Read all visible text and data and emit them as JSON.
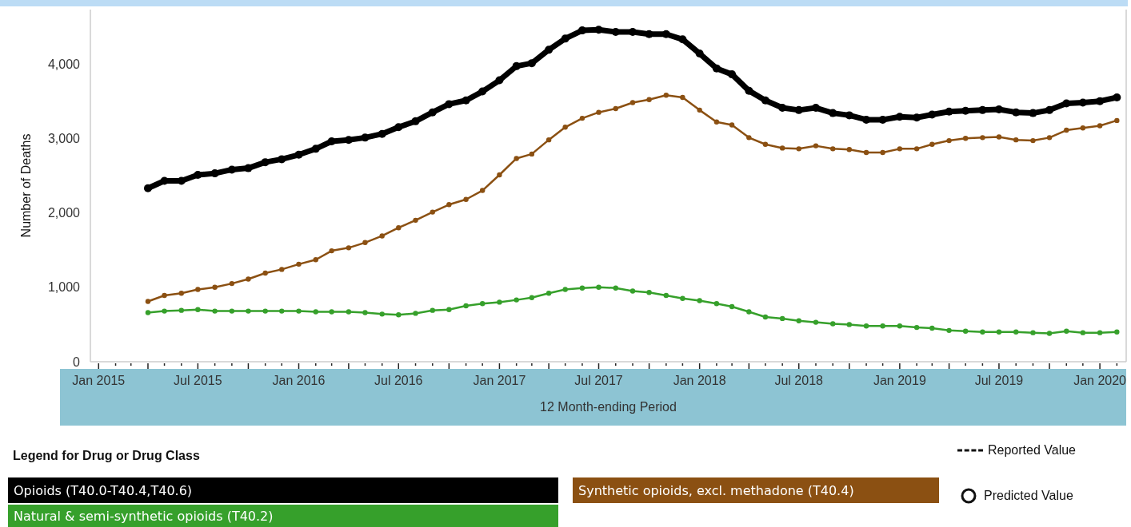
{
  "chart_data": {
    "type": "line",
    "ylabel": "Number of Deaths",
    "xlabel": "12 Month-ending Period",
    "legend_title": "Legend for Drug or Drug Class",
    "legend": "bottom",
    "marker": "circle",
    "line_style": "solid",
    "annotations": [
      "Reported Value",
      "Predicted Value"
    ],
    "x": [
      "2015-04",
      "2015-05",
      "2015-06",
      "2015-07",
      "2015-08",
      "2015-09",
      "2015-10",
      "2015-11",
      "2015-12",
      "2016-01",
      "2016-02",
      "2016-03",
      "2016-04",
      "2016-05",
      "2016-06",
      "2016-07",
      "2016-08",
      "2016-09",
      "2016-10",
      "2016-11",
      "2016-12",
      "2017-01",
      "2017-02",
      "2017-03",
      "2017-04",
      "2017-05",
      "2017-06",
      "2017-07",
      "2017-08",
      "2017-09",
      "2017-10",
      "2017-11",
      "2017-12",
      "2018-01",
      "2018-02",
      "2018-03",
      "2018-04",
      "2018-05",
      "2018-06",
      "2018-07",
      "2018-08",
      "2018-09",
      "2018-10",
      "2018-11",
      "2018-12",
      "2019-01",
      "2019-02",
      "2019-03",
      "2019-04",
      "2019-05",
      "2019-06",
      "2019-07",
      "2019-08",
      "2019-09",
      "2019-10",
      "2019-11",
      "2019-12",
      "2020-01",
      "2020-02"
    ],
    "series": [
      {
        "name": "Opioids (T40.0-T40.4,T40.6)",
        "color": "#000000",
        "values": [
          2330,
          2430,
          2430,
          2510,
          2530,
          2580,
          2600,
          2680,
          2720,
          2780,
          2860,
          2960,
          2980,
          3010,
          3060,
          3150,
          3230,
          3350,
          3460,
          3510,
          3630,
          3780,
          3970,
          4010,
          4190,
          4340,
          4450,
          4460,
          4430,
          4430,
          4400,
          4400,
          4330,
          4140,
          3940,
          3860,
          3640,
          3510,
          3410,
          3380,
          3410,
          3340,
          3310,
          3250,
          3250,
          3290,
          3280,
          3320,
          3360,
          3370,
          3380,
          3390,
          3350,
          3340,
          3380,
          3470,
          3480,
          3500,
          3550
        ]
      },
      {
        "name": "Synthetic opioids, excl. methadone (T40.4)",
        "color": "#8b5012",
        "values": [
          810,
          890,
          920,
          970,
          1000,
          1050,
          1110,
          1190,
          1240,
          1310,
          1370,
          1490,
          1530,
          1600,
          1690,
          1800,
          1900,
          2010,
          2110,
          2180,
          2300,
          2510,
          2730,
          2790,
          2980,
          3150,
          3270,
          3350,
          3400,
          3480,
          3520,
          3580,
          3550,
          3380,
          3220,
          3180,
          3010,
          2920,
          2870,
          2860,
          2900,
          2860,
          2850,
          2810,
          2810,
          2860,
          2860,
          2920,
          2970,
          3000,
          3010,
          3020,
          2980,
          2970,
          3010,
          3110,
          3140,
          3170,
          3240
        ]
      },
      {
        "name": "Natural & semi-synthetic opioids (T40.2)",
        "color": "#36a02b",
        "values": [
          660,
          680,
          690,
          700,
          680,
          680,
          680,
          680,
          680,
          680,
          670,
          670,
          670,
          660,
          640,
          630,
          650,
          690,
          700,
          750,
          780,
          800,
          830,
          860,
          920,
          970,
          990,
          1000,
          990,
          950,
          930,
          890,
          850,
          820,
          780,
          740,
          670,
          600,
          580,
          550,
          530,
          510,
          500,
          480,
          480,
          480,
          460,
          450,
          420,
          410,
          400,
          400,
          400,
          390,
          380,
          410,
          390,
          390,
          400
        ]
      }
    ],
    "xlim": [
      "2014-12-17",
      "2020-02-18"
    ],
    "xticks": [
      {
        "value": "2015-01",
        "label": "Jan 2015"
      },
      {
        "value": "2015-02",
        "label": null
      },
      {
        "value": "2015-03",
        "label": null
      },
      {
        "value": "2015-04",
        "label": null
      },
      {
        "value": "2015-05",
        "label": null
      },
      {
        "value": "2015-06",
        "label": null
      },
      {
        "value": "2015-07",
        "label": "Jul 2015"
      },
      {
        "value": "2015-08",
        "label": null
      },
      {
        "value": "2015-09",
        "label": null
      },
      {
        "value": "2015-10",
        "label": null
      },
      {
        "value": "2015-11",
        "label": null
      },
      {
        "value": "2015-12",
        "label": null
      },
      {
        "value": "2016-01",
        "label": "Jan 2016"
      },
      {
        "value": "2016-02",
        "label": null
      },
      {
        "value": "2016-03",
        "label": null
      },
      {
        "value": "2016-04",
        "label": null
      },
      {
        "value": "2016-05",
        "label": null
      },
      {
        "value": "2016-06",
        "label": null
      },
      {
        "value": "2016-07",
        "label": "Jul 2016"
      },
      {
        "value": "2016-08",
        "label": null
      },
      {
        "value": "2016-09",
        "label": null
      },
      {
        "value": "2016-10",
        "label": null
      },
      {
        "value": "2016-11",
        "label": null
      },
      {
        "value": "2016-12",
        "label": null
      },
      {
        "value": "2017-01",
        "label": "Jan 2017"
      },
      {
        "value": "2017-02",
        "label": null
      },
      {
        "value": "2017-03",
        "label": null
      },
      {
        "value": "2017-04",
        "label": null
      },
      {
        "value": "2017-05",
        "label": null
      },
      {
        "value": "2017-06",
        "label": null
      },
      {
        "value": "2017-07",
        "label": "Jul 2017"
      },
      {
        "value": "2017-08",
        "label": null
      },
      {
        "value": "2017-09",
        "label": null
      },
      {
        "value": "2017-10",
        "label": null
      },
      {
        "value": "2017-11",
        "label": null
      },
      {
        "value": "2017-12",
        "label": null
      },
      {
        "value": "2018-01",
        "label": "Jan 2018"
      },
      {
        "value": "2018-02",
        "label": null
      },
      {
        "value": "2018-03",
        "label": null
      },
      {
        "value": "2018-04",
        "label": null
      },
      {
        "value": "2018-05",
        "label": null
      },
      {
        "value": "2018-06",
        "label": null
      },
      {
        "value": "2018-07",
        "label": "Jul 2018"
      },
      {
        "value": "2018-08",
        "label": null
      },
      {
        "value": "2018-09",
        "label": null
      },
      {
        "value": "2018-10",
        "label": null
      },
      {
        "value": "2018-11",
        "label": null
      },
      {
        "value": "2018-12",
        "label": null
      },
      {
        "value": "2019-01",
        "label": "Jan 2019"
      },
      {
        "value": "2019-02",
        "label": null
      },
      {
        "value": "2019-03",
        "label": null
      },
      {
        "value": "2019-04",
        "label": null
      },
      {
        "value": "2019-05",
        "label": null
      },
      {
        "value": "2019-06",
        "label": null
      },
      {
        "value": "2019-07",
        "label": "Jul 2019"
      },
      {
        "value": "2019-08",
        "label": null
      },
      {
        "value": "2019-09",
        "label": null
      },
      {
        "value": "2019-10",
        "label": null
      },
      {
        "value": "2019-11",
        "label": null
      },
      {
        "value": "2019-12",
        "label": null
      },
      {
        "value": "2020-01",
        "label": "Jan 2020"
      },
      {
        "value": "2020-02",
        "label": null
      }
    ],
    "ylim": [
      0,
      4730
    ],
    "yticks": [
      0,
      {
        "value": 1000,
        "label": "1,000"
      },
      {
        "value": 2000,
        "label": "2,000"
      },
      {
        "value": 3000,
        "label": "3,000"
      },
      {
        "value": 4000,
        "label": "4,000"
      }
    ]
  }
}
